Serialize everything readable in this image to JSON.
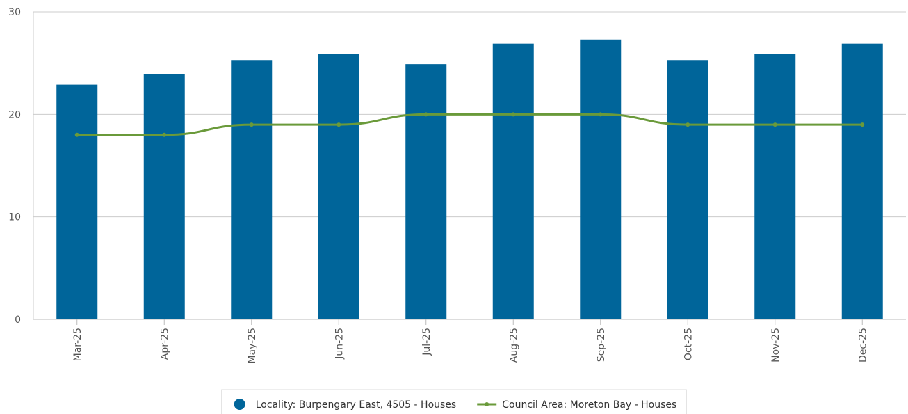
{
  "chart_data": {
    "type": "bar",
    "categories": [
      "Mar-25",
      "Apr-25",
      "May-25",
      "Jun-25",
      "Jul-25",
      "Aug-25",
      "Sep-25",
      "Oct-25",
      "Nov-25",
      "Dec-25"
    ],
    "series": [
      {
        "name": "Locality: Burpengary East, 4505 - Houses",
        "type": "bar",
        "color": "#00659a",
        "values": [
          22.9,
          23.9,
          25.3,
          25.9,
          24.9,
          26.9,
          27.3,
          25.3,
          25.9,
          26.9
        ]
      },
      {
        "name": "Council Area: Moreton Bay - Houses",
        "type": "line",
        "color": "#6a9a3a",
        "values": [
          18,
          18,
          19,
          19,
          20,
          20,
          20,
          19,
          19,
          19
        ]
      }
    ],
    "ylim": [
      0,
      30
    ],
    "yticks": [
      0,
      10,
      20,
      30
    ],
    "grid": true,
    "legend": "bottom"
  }
}
